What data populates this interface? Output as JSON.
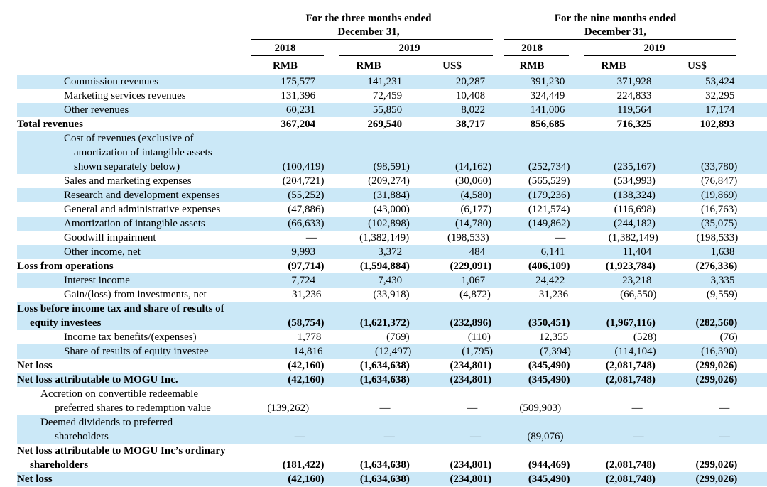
{
  "table": {
    "groups": [
      {
        "period_line1": "For the three months ended",
        "period_line2": "December 31,",
        "years": [
          {
            "year": "2018"
          },
          {
            "year": "2019"
          }
        ]
      },
      {
        "period_line1": "For the nine months ended",
        "period_line2": "December 31,",
        "years": [
          {
            "year": "2018"
          },
          {
            "year": "2019"
          }
        ]
      }
    ],
    "currency_row": [
      "RMB",
      "RMB",
      "US$",
      "RMB",
      "RMB",
      "US$"
    ],
    "rows": [
      {
        "label_lines": [
          "Commission revenues"
        ],
        "level": "item",
        "bold": false,
        "shaded": true,
        "values": [
          "175,577",
          "141,231",
          "20,287",
          "391,230",
          "371,928",
          "53,424"
        ]
      },
      {
        "label_lines": [
          "Marketing services revenues"
        ],
        "level": "item",
        "bold": false,
        "shaded": false,
        "values": [
          "131,396",
          "72,459",
          "10,408",
          "324,449",
          "224,833",
          "32,295"
        ]
      },
      {
        "label_lines": [
          "Other revenues"
        ],
        "level": "item",
        "bold": false,
        "shaded": true,
        "values": [
          "60,231",
          "55,850",
          "8,022",
          "141,006",
          "119,564",
          "17,174"
        ]
      },
      {
        "label_lines": [
          "Total revenues"
        ],
        "level": "section",
        "bold": true,
        "shaded": false,
        "values": [
          "367,204",
          "269,540",
          "38,717",
          "856,685",
          "716,325",
          "102,893"
        ]
      },
      {
        "label_lines": [
          "Cost of revenues (exclusive of",
          "amortization of intangible assets",
          "shown separately below)"
        ],
        "level": "item",
        "bold": false,
        "shaded": true,
        "values": [
          "(100,419)",
          "(98,591)",
          "(14,162)",
          "(252,734)",
          "(235,167)",
          "(33,780)"
        ]
      },
      {
        "label_lines": [
          "Sales and marketing expenses"
        ],
        "level": "item",
        "bold": false,
        "shaded": false,
        "values": [
          "(204,721)",
          "(209,274)",
          "(30,060)",
          "(565,529)",
          "(534,993)",
          "(76,847)"
        ]
      },
      {
        "label_lines": [
          "Research and development expenses"
        ],
        "level": "item",
        "bold": false,
        "shaded": true,
        "values": [
          "(55,252)",
          "(31,884)",
          "(4,580)",
          "(179,236)",
          "(138,324)",
          "(19,869)"
        ]
      },
      {
        "label_lines": [
          "General and administrative expenses"
        ],
        "level": "item",
        "bold": false,
        "shaded": false,
        "values": [
          "(47,886)",
          "(43,000)",
          "(6,177)",
          "(121,574)",
          "(116,698)",
          "(16,763)"
        ]
      },
      {
        "label_lines": [
          "Amortization of intangible assets"
        ],
        "level": "item",
        "bold": false,
        "shaded": true,
        "values": [
          "(66,633)",
          "(102,898)",
          "(14,780)",
          "(149,862)",
          "(244,182)",
          "(35,075)"
        ]
      },
      {
        "label_lines": [
          "Goodwill impairment"
        ],
        "level": "item",
        "bold": false,
        "shaded": false,
        "values": [
          "—",
          "(1,382,149)",
          "(198,533)",
          "—",
          "(1,382,149)",
          "(198,533)"
        ]
      },
      {
        "label_lines": [
          "Other income, net"
        ],
        "level": "item",
        "bold": false,
        "shaded": true,
        "values": [
          "9,993",
          "3,372",
          "484",
          "6,141",
          "11,404",
          "1,638"
        ]
      },
      {
        "label_lines": [
          "Loss from operations"
        ],
        "level": "section",
        "bold": true,
        "shaded": false,
        "values": [
          "(97,714)",
          "(1,594,884)",
          "(229,091)",
          "(406,109)",
          "(1,923,784)",
          "(276,336)"
        ]
      },
      {
        "label_lines": [
          "Interest income"
        ],
        "level": "item",
        "bold": false,
        "shaded": true,
        "values": [
          "7,724",
          "7,430",
          "1,067",
          "24,422",
          "23,218",
          "3,335"
        ]
      },
      {
        "label_lines": [
          "Gain/(loss) from investments, net"
        ],
        "level": "item",
        "bold": false,
        "shaded": false,
        "values": [
          "31,236",
          "(33,918)",
          "(4,872)",
          "31,236",
          "(66,550)",
          "(9,559)"
        ]
      },
      {
        "label_lines": [
          "Loss before income tax and share of results of",
          "equity investees"
        ],
        "level": "section",
        "bold": true,
        "shaded": true,
        "values": [
          "(58,754)",
          "(1,621,372)",
          "(232,896)",
          "(350,451)",
          "(1,967,116)",
          "(282,560)"
        ]
      },
      {
        "label_lines": [
          "Income tax benefits/(expenses)"
        ],
        "level": "item",
        "bold": false,
        "shaded": false,
        "values": [
          "1,778",
          "(769)",
          "(110)",
          "12,355",
          "(528)",
          "(76)"
        ]
      },
      {
        "label_lines": [
          "Share of results of equity investee"
        ],
        "level": "item",
        "bold": false,
        "shaded": true,
        "values": [
          "14,816",
          "(12,497)",
          "(1,795)",
          "(7,394)",
          "(114,104)",
          "(16,390)"
        ]
      },
      {
        "label_lines": [
          "Net loss"
        ],
        "level": "section",
        "bold": true,
        "shaded": false,
        "values": [
          "(42,160)",
          "(1,634,638)",
          "(234,801)",
          "(345,490)",
          "(2,081,748)",
          "(299,026)"
        ]
      },
      {
        "label_lines": [
          "Net loss attributable to MOGU Inc."
        ],
        "level": "section",
        "bold": true,
        "shaded": true,
        "values": [
          "(42,160)",
          "(1,634,638)",
          "(234,801)",
          "(345,490)",
          "(2,081,748)",
          "(299,026)"
        ]
      },
      {
        "label_lines": [
          "Accretion on convertible redeemable",
          "preferred shares to redemption value"
        ],
        "level": "item2",
        "bold": false,
        "shaded": false,
        "values": [
          "(139,262)",
          "—",
          "—",
          "(509,903)",
          "—",
          "—"
        ]
      },
      {
        "label_lines": [
          "Deemed dividends to preferred",
          "shareholders"
        ],
        "level": "item2",
        "bold": false,
        "shaded": true,
        "values": [
          "—",
          "—",
          "—",
          "(89,076)",
          "—",
          "—"
        ]
      },
      {
        "label_lines": [
          "Net loss attributable to MOGU Inc’s ordinary",
          "shareholders"
        ],
        "level": "section",
        "bold": true,
        "shaded": false,
        "values": [
          "(181,422)",
          "(1,634,638)",
          "(234,801)",
          "(944,469)",
          "(2,081,748)",
          "(299,026)"
        ]
      },
      {
        "label_lines": [
          "Net loss"
        ],
        "level": "section",
        "bold": true,
        "shaded": true,
        "values": [
          "(42,160)",
          "(1,634,638)",
          "(234,801)",
          "(345,490)",
          "(2,081,748)",
          "(299,026)"
        ]
      }
    ]
  },
  "colors": {
    "row_shade": "#cbe8f7",
    "rule": "#000000"
  }
}
